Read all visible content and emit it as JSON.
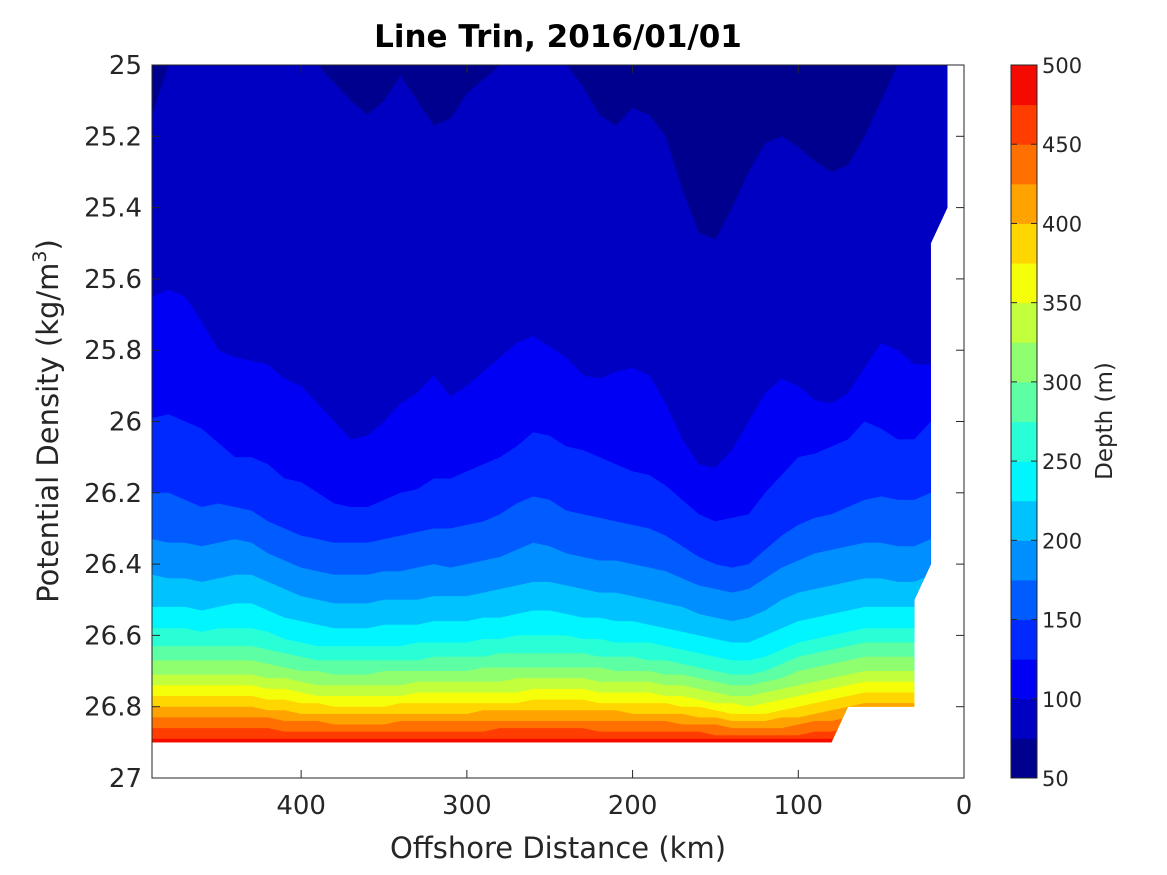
{
  "chart_data": {
    "type": "heatmap",
    "title": "Line Trin, 2016/01/01",
    "xlabel": "Offshore Distance (km)",
    "ylabel_main": "Potential Density (kg/m",
    "ylabel_sup": "3",
    "ylabel_close": ")",
    "x_reversed": true,
    "xlim": [
      490,
      0
    ],
    "ylim": [
      25,
      27
    ],
    "y_reversed": true,
    "x_ticks": [
      400,
      300,
      200,
      100,
      0
    ],
    "x_tick_labels": [
      "400",
      "300",
      "200",
      "100",
      "0"
    ],
    "y_ticks": [
      25,
      25.2,
      25.4,
      25.6,
      25.8,
      26,
      26.2,
      26.4,
      26.6,
      26.8,
      27
    ],
    "y_tick_labels": [
      "25",
      "25.2",
      "25.4",
      "25.6",
      "25.8",
      "26",
      "26.2",
      "26.4",
      "26.6",
      "26.8",
      "27"
    ],
    "colorbar": {
      "label": "Depth (m)",
      "range": [
        50,
        500
      ],
      "ticks": [
        50,
        100,
        150,
        200,
        250,
        300,
        350,
        400,
        450,
        500
      ],
      "tick_labels": [
        "50",
        "100",
        "150",
        "200",
        "250",
        "300",
        "350",
        "400",
        "450",
        "500"
      ],
      "levels": 18,
      "colors": [
        "#00008f",
        "#0000c2",
        "#0000f5",
        "#0029ff",
        "#005cff",
        "#008fff",
        "#00c2ff",
        "#00f5ff",
        "#29ffd6",
        "#5cffa3",
        "#8fff70",
        "#c2ff3d",
        "#f5ff0a",
        "#ffd600",
        "#ffa300",
        "#ff7000",
        "#ff3d00",
        "#f50a00"
      ]
    },
    "x_samples": [
      490,
      480,
      470,
      460,
      450,
      440,
      430,
      420,
      410,
      400,
      390,
      380,
      370,
      360,
      350,
      340,
      330,
      320,
      310,
      300,
      290,
      280,
      270,
      260,
      250,
      240,
      230,
      220,
      210,
      200,
      190,
      180,
      170,
      160,
      150,
      140,
      130,
      120,
      110,
      100,
      90,
      80,
      70,
      60,
      50,
      40,
      30,
      20,
      10
    ],
    "contour_density": [
      {
        "level": 75,
        "density": [
          25.14,
          25.0,
          25.0,
          25.0,
          25.0,
          25.0,
          25.0,
          25.0,
          25.0,
          25.0,
          25.0,
          25.05,
          25.1,
          25.14,
          25.1,
          25.03,
          25.1,
          25.17,
          25.15,
          25.08,
          25.04,
          25.0,
          25.0,
          25.0,
          25.0,
          25.0,
          25.06,
          25.14,
          25.17,
          25.12,
          25.14,
          25.2,
          25.35,
          25.47,
          25.49,
          25.4,
          25.3,
          25.22,
          25.2,
          25.23,
          25.27,
          25.3,
          25.28,
          25.2,
          25.1,
          25.0,
          25.0,
          25.0,
          25.0
        ]
      },
      {
        "level": 100,
        "density": [
          25.0,
          25.0,
          25.0,
          25.0,
          25.0,
          25.0,
          25.0,
          25.0,
          25.0,
          25.0,
          25.0,
          25.0,
          25.0,
          25.0,
          25.0,
          25.0,
          25.0,
          25.0,
          25.0,
          25.0,
          25.0,
          25.0,
          25.0,
          25.0,
          25.0,
          25.0,
          25.0,
          25.0,
          25.0,
          25.0,
          25.0,
          25.0,
          25.0,
          25.0,
          25.0,
          25.0,
          25.0,
          25.0,
          25.0,
          25.0,
          25.0,
          25.0,
          25.0,
          25.0,
          25.0,
          25.0,
          25.0,
          25.0,
          25.0
        ]
      },
      {
        "level": 125,
        "density": [
          25.65,
          25.63,
          25.65,
          25.72,
          25.8,
          25.82,
          25.83,
          25.84,
          25.88,
          25.9,
          25.95,
          26.0,
          26.05,
          26.04,
          26.0,
          25.95,
          25.92,
          25.87,
          25.93,
          25.9,
          25.86,
          25.82,
          25.78,
          25.76,
          25.79,
          25.82,
          25.87,
          25.88,
          25.86,
          25.85,
          25.87,
          25.95,
          26.05,
          26.12,
          26.13,
          26.08,
          26.0,
          25.92,
          25.88,
          25.9,
          25.94,
          25.95,
          25.92,
          25.85,
          25.78,
          25.8,
          25.84,
          25.84,
          25.84
        ]
      },
      {
        "level": 150,
        "density": [
          25.99,
          25.98,
          26.0,
          26.02,
          26.06,
          26.1,
          26.1,
          26.12,
          26.16,
          26.17,
          26.2,
          26.23,
          26.24,
          26.24,
          26.22,
          26.2,
          26.19,
          26.16,
          26.16,
          26.14,
          26.12,
          26.1,
          26.07,
          26.03,
          26.04,
          26.07,
          26.08,
          26.1,
          26.12,
          26.14,
          26.15,
          26.18,
          26.22,
          26.26,
          26.28,
          26.27,
          26.26,
          26.2,
          26.15,
          26.1,
          26.09,
          26.07,
          26.05,
          26.0,
          26.02,
          26.05,
          26.05,
          26.0,
          26.0
        ]
      },
      {
        "level": 175,
        "density": [
          26.2,
          26.2,
          26.22,
          26.24,
          26.23,
          26.24,
          26.25,
          26.28,
          26.3,
          26.32,
          26.33,
          26.34,
          26.34,
          26.34,
          26.33,
          26.32,
          26.31,
          26.3,
          26.3,
          26.29,
          26.28,
          26.26,
          26.23,
          26.21,
          26.22,
          26.25,
          26.26,
          26.27,
          26.28,
          26.29,
          26.3,
          26.32,
          26.35,
          26.38,
          26.4,
          26.41,
          26.4,
          26.36,
          26.32,
          26.29,
          26.27,
          26.26,
          26.24,
          26.22,
          26.21,
          26.22,
          26.22,
          26.2,
          26.2
        ]
      },
      {
        "level": 200,
        "density": [
          26.33,
          26.34,
          26.34,
          26.35,
          26.34,
          26.33,
          26.34,
          26.37,
          26.39,
          26.41,
          26.42,
          26.43,
          26.43,
          26.43,
          26.42,
          26.42,
          26.41,
          26.4,
          26.41,
          26.4,
          26.39,
          26.38,
          26.36,
          26.34,
          26.35,
          26.37,
          26.38,
          26.39,
          26.39,
          26.4,
          26.41,
          26.42,
          26.44,
          26.46,
          26.47,
          26.48,
          26.47,
          26.44,
          26.41,
          26.39,
          26.37,
          26.36,
          26.35,
          26.34,
          26.34,
          26.35,
          26.35,
          26.33,
          26.33
        ]
      },
      {
        "level": 225,
        "density": [
          26.43,
          26.44,
          26.44,
          26.45,
          26.44,
          26.43,
          26.43,
          26.45,
          26.47,
          26.49,
          26.5,
          26.51,
          26.51,
          26.51,
          26.5,
          26.5,
          26.5,
          26.49,
          26.49,
          26.49,
          26.48,
          26.47,
          26.46,
          26.45,
          26.45,
          26.46,
          26.47,
          26.48,
          26.48,
          26.49,
          26.5,
          26.51,
          26.52,
          26.54,
          26.55,
          26.56,
          26.55,
          26.53,
          26.5,
          26.48,
          26.47,
          26.46,
          26.45,
          26.44,
          26.44,
          26.45,
          26.45,
          26.43,
          26.43
        ]
      },
      {
        "level": 250,
        "density": [
          26.52,
          26.52,
          26.52,
          26.53,
          26.52,
          26.51,
          26.51,
          26.53,
          26.55,
          26.56,
          26.57,
          26.58,
          26.58,
          26.58,
          26.57,
          26.57,
          26.57,
          26.56,
          26.56,
          26.56,
          26.55,
          26.55,
          26.54,
          26.53,
          26.53,
          26.54,
          26.55,
          26.55,
          26.56,
          26.56,
          26.57,
          26.58,
          26.59,
          26.6,
          26.61,
          26.62,
          26.62,
          26.6,
          26.58,
          26.56,
          26.55,
          26.54,
          26.53,
          26.52,
          26.52,
          26.52,
          26.52,
          26.51,
          26.51
        ]
      },
      {
        "level": 275,
        "density": [
          26.58,
          26.58,
          26.58,
          26.59,
          26.58,
          26.58,
          26.58,
          26.59,
          26.61,
          26.62,
          26.63,
          26.63,
          26.63,
          26.63,
          26.63,
          26.63,
          26.62,
          26.62,
          26.62,
          26.62,
          26.61,
          26.61,
          26.6,
          26.6,
          26.6,
          26.6,
          26.61,
          26.61,
          26.62,
          26.62,
          26.62,
          26.63,
          26.64,
          26.65,
          26.66,
          26.67,
          26.67,
          26.66,
          26.64,
          26.62,
          26.61,
          26.6,
          26.59,
          26.58,
          26.58,
          26.58,
          26.58,
          26.57,
          26.57
        ]
      },
      {
        "level": 300,
        "density": [
          26.63,
          26.63,
          26.63,
          26.63,
          26.63,
          26.63,
          26.63,
          26.64,
          26.65,
          26.66,
          26.67,
          26.67,
          26.67,
          26.67,
          26.67,
          26.67,
          26.67,
          26.66,
          26.66,
          26.66,
          26.66,
          26.65,
          26.65,
          26.65,
          26.65,
          26.65,
          26.65,
          26.66,
          26.66,
          26.66,
          26.67,
          26.67,
          26.68,
          26.69,
          26.7,
          26.71,
          26.71,
          26.7,
          26.68,
          26.66,
          26.65,
          26.64,
          26.63,
          26.62,
          26.62,
          26.62,
          26.62,
          26.61,
          26.61
        ]
      },
      {
        "level": 325,
        "density": [
          26.67,
          26.67,
          26.67,
          26.67,
          26.67,
          26.67,
          26.67,
          26.68,
          26.69,
          26.7,
          26.7,
          26.71,
          26.71,
          26.71,
          26.7,
          26.7,
          26.7,
          26.7,
          26.7,
          26.7,
          26.69,
          26.69,
          26.69,
          26.69,
          26.69,
          26.69,
          26.69,
          26.69,
          26.7,
          26.7,
          26.7,
          26.71,
          26.71,
          26.72,
          26.73,
          26.74,
          26.74,
          26.73,
          26.72,
          26.7,
          26.69,
          26.68,
          26.67,
          26.66,
          26.66,
          26.66,
          26.66,
          26.65,
          26.65
        ]
      },
      {
        "level": 350,
        "density": [
          26.71,
          26.71,
          26.71,
          26.71,
          26.71,
          26.71,
          26.71,
          26.72,
          26.72,
          26.73,
          26.74,
          26.74,
          26.74,
          26.74,
          26.74,
          26.74,
          26.73,
          26.73,
          26.73,
          26.73,
          26.73,
          26.73,
          26.72,
          26.72,
          26.72,
          26.72,
          26.72,
          26.73,
          26.73,
          26.73,
          26.73,
          26.74,
          26.74,
          26.75,
          26.76,
          26.77,
          26.77,
          26.76,
          26.75,
          26.74,
          26.73,
          26.72,
          26.71,
          26.7,
          26.7,
          26.7,
          26.7,
          26.69,
          26.69
        ]
      },
      {
        "level": 375,
        "density": [
          26.74,
          26.74,
          26.74,
          26.74,
          26.74,
          26.74,
          26.74,
          26.75,
          26.75,
          26.76,
          26.77,
          26.77,
          26.77,
          26.77,
          26.77,
          26.77,
          26.76,
          26.76,
          26.76,
          26.76,
          26.76,
          26.76,
          26.76,
          26.75,
          26.75,
          26.75,
          26.75,
          26.76,
          26.76,
          26.76,
          26.76,
          26.77,
          26.77,
          26.78,
          26.79,
          26.79,
          26.8,
          26.79,
          26.78,
          26.77,
          26.76,
          26.75,
          26.74,
          26.73,
          26.73,
          26.73,
          26.73,
          26.72,
          26.72
        ]
      },
      {
        "level": 400,
        "density": [
          26.77,
          26.77,
          26.77,
          26.77,
          26.77,
          26.77,
          26.77,
          26.78,
          26.78,
          26.79,
          26.79,
          26.8,
          26.8,
          26.8,
          26.8,
          26.79,
          26.79,
          26.79,
          26.79,
          26.79,
          26.79,
          26.79,
          26.79,
          26.78,
          26.78,
          26.78,
          26.78,
          26.79,
          26.79,
          26.79,
          26.79,
          26.79,
          26.8,
          26.8,
          26.81,
          26.82,
          26.82,
          26.82,
          26.81,
          26.8,
          26.79,
          26.78,
          26.77,
          26.76,
          26.76,
          26.76,
          26.76,
          26.75,
          26.75
        ]
      },
      {
        "level": 425,
        "density": [
          26.8,
          26.8,
          26.8,
          26.8,
          26.8,
          26.8,
          26.8,
          26.81,
          26.81,
          26.82,
          26.82,
          26.82,
          26.82,
          26.82,
          26.82,
          26.82,
          26.82,
          26.82,
          26.82,
          26.82,
          26.81,
          26.81,
          26.81,
          26.81,
          26.81,
          26.81,
          26.81,
          26.81,
          26.81,
          26.82,
          26.82,
          26.82,
          26.82,
          26.83,
          26.83,
          26.84,
          26.84,
          26.84,
          26.83,
          26.83,
          26.82,
          26.81,
          26.8,
          26.79,
          26.79,
          26.79,
          26.79,
          26.78,
          26.78
        ]
      },
      {
        "level": 450,
        "density": [
          26.83,
          26.83,
          26.83,
          26.83,
          26.83,
          26.83,
          26.83,
          26.83,
          26.84,
          26.84,
          26.84,
          26.85,
          26.85,
          26.85,
          26.85,
          26.84,
          26.84,
          26.84,
          26.84,
          26.84,
          26.84,
          26.84,
          26.84,
          26.84,
          26.84,
          26.84,
          26.84,
          26.84,
          26.84,
          26.84,
          26.84,
          26.84,
          26.85,
          26.85,
          26.85,
          26.86,
          26.86,
          26.86,
          26.86,
          26.85,
          26.84,
          26.84,
          26.83,
          26.82,
          26.82,
          26.82,
          26.82,
          26.81,
          26.81
        ]
      },
      {
        "level": 475,
        "density": [
          26.86,
          26.86,
          26.86,
          26.86,
          26.86,
          26.86,
          26.86,
          26.86,
          26.87,
          26.87,
          26.87,
          26.87,
          26.87,
          26.87,
          26.87,
          26.87,
          26.87,
          26.87,
          26.87,
          26.87,
          26.87,
          26.86,
          26.86,
          26.86,
          26.86,
          26.86,
          26.86,
          26.87,
          26.87,
          26.87,
          26.87,
          26.87,
          26.87,
          26.87,
          26.88,
          26.88,
          26.88,
          26.88,
          26.88,
          26.88,
          26.87,
          26.87,
          26.86,
          26.85,
          26.85,
          26.85,
          26.85,
          26.84,
          26.84
        ]
      },
      {
        "level": 500,
        "density": [
          26.89,
          26.89,
          26.89,
          26.89,
          26.89,
          26.89,
          26.89,
          26.89,
          26.89,
          26.89,
          26.89,
          26.89,
          26.89,
          26.89,
          26.89,
          26.89,
          26.89,
          26.89,
          26.89,
          26.89,
          26.89,
          26.89,
          26.89,
          26.89,
          26.89,
          26.89,
          26.89,
          26.89,
          26.89,
          26.89,
          26.89,
          26.89,
          26.89,
          26.89,
          26.89,
          26.89,
          26.89,
          26.89,
          26.89,
          26.89,
          26.89,
          26.89,
          26.89,
          26.89,
          26.89,
          26.89,
          26.89,
          26.89,
          26.89
        ]
      }
    ],
    "data_mask": {
      "x": [
        490,
        80,
        70,
        30,
        30,
        20,
        20,
        10,
        10,
        490
      ],
      "y_bottom": [
        26.9,
        26.9,
        26.8,
        26.8,
        26.5,
        26.4,
        25.5,
        25.4,
        25.0,
        25.0
      ]
    }
  }
}
